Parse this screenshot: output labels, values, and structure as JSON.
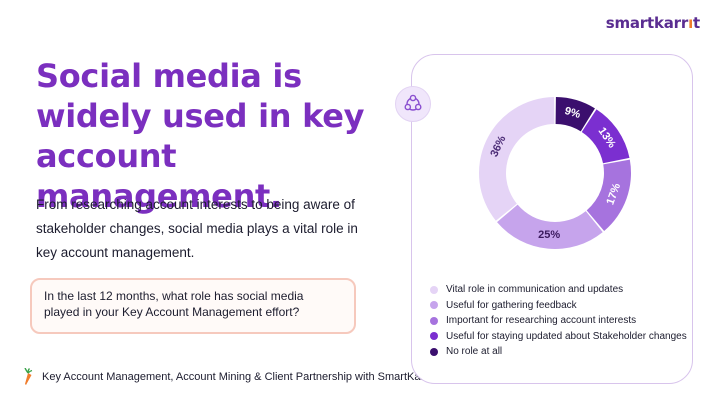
{
  "brand": {
    "logo_text_before": "smartkarr",
    "logo_text_carrot": "ı",
    "logo_text_after": "t"
  },
  "headline": "Social media is widely used in key account management.",
  "body": "From researching account interests to being aware of stakeholder changes, social media plays a vital role in key account management.",
  "question": "In the last 12 months, what role has social media played in your Key Account Management effort?",
  "footer": "Key Account Management, Account Mining & Client Partnership with SmartKarrot",
  "icons": {
    "badge": "network-nodes-icon",
    "footer": "carrot-icon"
  },
  "chart_data": {
    "type": "pie",
    "variant": "donut",
    "categories": [
      "Vital role in communication and updates",
      "Useful for gathering feedback",
      "Important for researching account interests",
      "Useful for staying updated about Stakeholder changes",
      "No role at all"
    ],
    "values": [
      36,
      25,
      17,
      13,
      9
    ],
    "labels": [
      "36%",
      "25%",
      "17%",
      "13%",
      "9%"
    ],
    "colors": [
      "#e5d4f6",
      "#c6a4ec",
      "#a673de",
      "#7b2fd0",
      "#3b0f6e"
    ],
    "label_colors": [
      "#4a2a75",
      "#3b1a5e",
      "#ffffff",
      "#ffffff",
      "#ffffff"
    ],
    "legend_position": "bottom",
    "start_angle_deg": 0,
    "order": "anticlockwise from top"
  },
  "accent": "#7b2fbf"
}
